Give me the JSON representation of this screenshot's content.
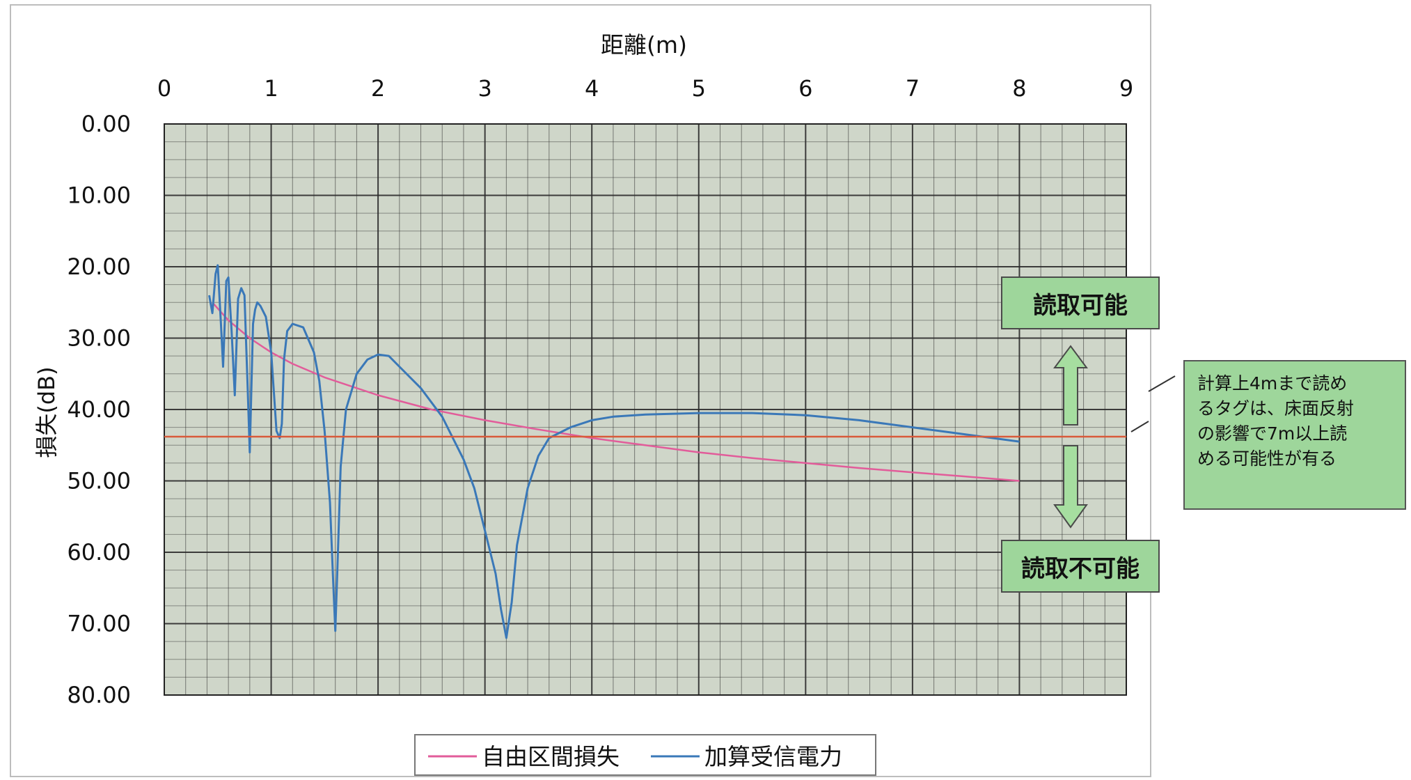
{
  "chart_data": {
    "type": "line",
    "xlabel": "距離(m)",
    "ylabel": "損失(dB)",
    "xlim": [
      0,
      9
    ],
    "ylim": [
      0,
      80
    ],
    "y_inverted": true,
    "x_axis_position": "top",
    "x_ticks": [
      "0",
      "1",
      "2",
      "3",
      "4",
      "5",
      "6",
      "7",
      "8",
      "9"
    ],
    "y_ticks": [
      "0.00",
      "10.00",
      "20.00",
      "30.00",
      "40.00",
      "50.00",
      "60.00",
      "70.00",
      "80.00"
    ],
    "grid": true,
    "legend_position": "bottom",
    "series": [
      {
        "name": "自由区間損失",
        "color": "#e25c9a",
        "x": [
          0.45,
          0.6,
          0.8,
          1.0,
          1.2,
          1.5,
          2.0,
          2.5,
          3.0,
          3.5,
          4.0,
          4.5,
          5.0,
          5.5,
          6.0,
          6.5,
          7.0,
          7.5,
          8.0
        ],
        "y": [
          25.0,
          27.5,
          30.0,
          32.0,
          33.6,
          35.5,
          38.0,
          40.0,
          41.5,
          42.8,
          44.0,
          45.0,
          46.0,
          46.8,
          47.5,
          48.2,
          48.8,
          49.4,
          50.0
        ]
      },
      {
        "name": "加算受信電力",
        "color": "#3a78b8",
        "x": [
          0.42,
          0.45,
          0.48,
          0.5,
          0.53,
          0.55,
          0.58,
          0.6,
          0.63,
          0.66,
          0.69,
          0.7,
          0.72,
          0.75,
          0.78,
          0.8,
          0.83,
          0.85,
          0.87,
          0.9,
          0.95,
          1.0,
          1.05,
          1.08,
          1.1,
          1.12,
          1.15,
          1.2,
          1.3,
          1.4,
          1.45,
          1.5,
          1.55,
          1.58,
          1.6,
          1.62,
          1.65,
          1.7,
          1.8,
          1.9,
          2.0,
          2.1,
          2.2,
          2.4,
          2.6,
          2.8,
          2.9,
          3.0,
          3.1,
          3.15,
          3.2,
          3.25,
          3.3,
          3.4,
          3.5,
          3.6,
          3.8,
          4.0,
          4.2,
          4.5,
          5.0,
          5.5,
          6.0,
          6.5,
          7.0,
          7.5,
          8.0
        ],
        "y": [
          24.0,
          26.5,
          21.0,
          19.8,
          28.0,
          34.0,
          22.0,
          21.5,
          29.0,
          38.0,
          24.5,
          24.0,
          23.0,
          24.0,
          37.0,
          46.0,
          28.0,
          26.0,
          25.0,
          25.5,
          27.0,
          32.0,
          43.0,
          44.0,
          42.0,
          33.0,
          29.0,
          28.0,
          28.5,
          32.0,
          36.0,
          43.0,
          53.0,
          64.0,
          71.0,
          62.0,
          48.0,
          40.0,
          35.0,
          33.0,
          32.3,
          32.5,
          34.0,
          37.0,
          41.0,
          47.0,
          51.0,
          57.0,
          63.0,
          68.0,
          72.0,
          67.0,
          59.0,
          51.0,
          46.5,
          44.0,
          42.5,
          41.5,
          41.0,
          40.7,
          40.5,
          40.5,
          40.8,
          41.5,
          42.5,
          43.5,
          44.5
        ]
      },
      {
        "name": "",
        "color": "#d95a3a",
        "x": [
          0,
          9
        ],
        "y": [
          43.8,
          43.8
        ]
      }
    ]
  },
  "legend": {
    "free_space_loss": "自由区間損失",
    "received_power": "加算受信電力"
  },
  "annotations": {
    "readable": "読取可能",
    "unreadable": "読取不可能",
    "note_lines": [
      "計算上4mまで読め",
      "るタグは、床面反射",
      "の影響で7m以上読",
      "める可能性が有る"
    ]
  },
  "colors": {
    "plot_bg": "#cfd6c9",
    "grid": "#2b2b2b",
    "box_fill": "#9ed69b",
    "arrow_fill": "#a6dea0"
  }
}
